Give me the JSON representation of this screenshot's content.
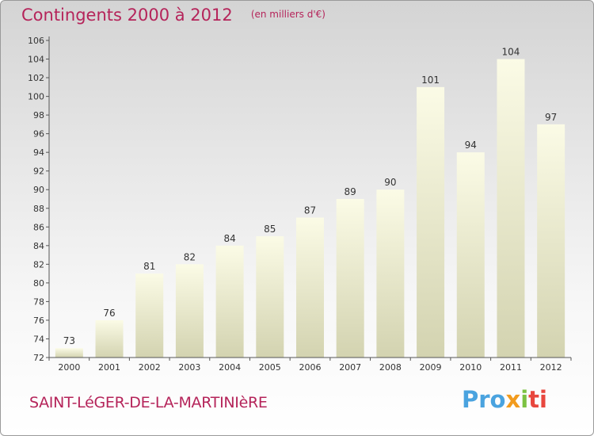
{
  "header": {
    "title": "Contingents 2000 à 2012",
    "unit": "(en milliers d'€)"
  },
  "footer": {
    "place": "SAINT-LéGER-DE-LA-MARTINIèRE",
    "logo_parts": [
      "Pro",
      "x",
      "i",
      "ti"
    ]
  },
  "colors": {
    "accent": "#b5245a",
    "bar_top": "#fbfbe6",
    "bar_bottom": "#d3d3b0"
  },
  "chart_data": {
    "type": "bar",
    "categories": [
      "2000",
      "2001",
      "2002",
      "2003",
      "2004",
      "2005",
      "2006",
      "2007",
      "2008",
      "2009",
      "2010",
      "2011",
      "2012"
    ],
    "values": [
      73,
      76,
      81,
      82,
      84,
      85,
      87,
      89,
      90,
      101,
      94,
      104,
      97
    ],
    "title": "Contingents 2000 à 2012",
    "ylabel": "(en milliers d'€)",
    "ylim": [
      72,
      106
    ],
    "yticks": [
      72,
      74,
      76,
      78,
      80,
      82,
      84,
      86,
      88,
      90,
      92,
      94,
      96,
      98,
      100,
      102,
      104,
      106
    ],
    "grid": false,
    "data_labels": true
  }
}
